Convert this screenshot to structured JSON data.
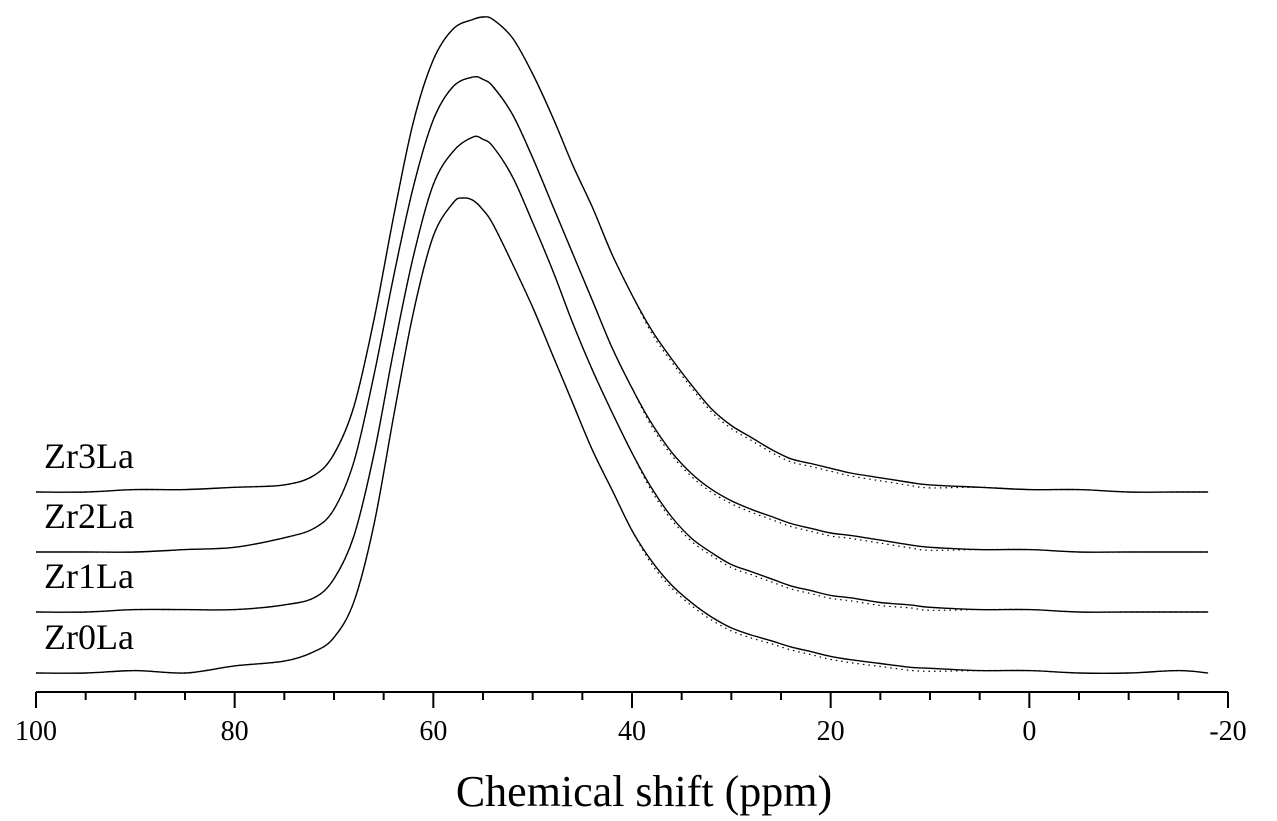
{
  "chart_data": {
    "type": "line",
    "title": "",
    "xlabel": "Chemical shift (ppm)",
    "ylabel": "",
    "xlim": [
      100,
      -20
    ],
    "x_reversed": true,
    "x_ticks": [
      100,
      80,
      60,
      40,
      20,
      0,
      -20
    ],
    "minor_tick_step": 5,
    "y_axis_shown": false,
    "grid": false,
    "legend": "none",
    "curve_styles": {
      "experimental": "solid",
      "fit": "dotted"
    },
    "series": [
      {
        "name": "Zr0La",
        "x": [
          100,
          95,
          90,
          85,
          80,
          75,
          72,
          70,
          68,
          66,
          64,
          62,
          60,
          58,
          57,
          56,
          55,
          54,
          52,
          50,
          48,
          46,
          44,
          42,
          40,
          38,
          36,
          34,
          32,
          30,
          28,
          26,
          24,
          22,
          20,
          18,
          15,
          12,
          10,
          5,
          0,
          -5,
          -10,
          -15,
          -18
        ],
        "y": [
          0.0,
          0.0,
          0.005,
          0.0,
          0.015,
          0.025,
          0.045,
          0.075,
          0.15,
          0.31,
          0.54,
          0.76,
          0.92,
          0.99,
          1.0,
          0.995,
          0.975,
          0.945,
          0.86,
          0.77,
          0.67,
          0.57,
          0.47,
          0.385,
          0.3,
          0.235,
          0.185,
          0.148,
          0.118,
          0.095,
          0.08,
          0.068,
          0.055,
          0.045,
          0.035,
          0.028,
          0.02,
          0.012,
          0.01,
          0.005,
          0.005,
          0.0,
          0.0,
          0.005,
          0.0
        ]
      },
      {
        "name": "Zr1La",
        "x": [
          100,
          95,
          90,
          85,
          80,
          75,
          72,
          70,
          68,
          66,
          64,
          62,
          60,
          58,
          56,
          55,
          54,
          52,
          50,
          48,
          46,
          44,
          42,
          40,
          38,
          36,
          34,
          32,
          30,
          28,
          26,
          24,
          22,
          20,
          18,
          15,
          12,
          10,
          5,
          0,
          -5,
          -10,
          -15,
          -18
        ],
        "y": [
          0.0,
          0.0,
          0.005,
          0.005,
          0.005,
          0.015,
          0.03,
          0.07,
          0.16,
          0.33,
          0.55,
          0.75,
          0.9,
          0.97,
          1.0,
          0.995,
          0.98,
          0.915,
          0.82,
          0.72,
          0.61,
          0.51,
          0.42,
          0.335,
          0.26,
          0.2,
          0.155,
          0.125,
          0.1,
          0.085,
          0.07,
          0.055,
          0.045,
          0.035,
          0.03,
          0.02,
          0.015,
          0.01,
          0.005,
          0.005,
          0.0,
          0.0,
          0.0,
          0.0
        ]
      },
      {
        "name": "Zr2La",
        "x": [
          100,
          95,
          90,
          85,
          80,
          75,
          72,
          70,
          68,
          66,
          64,
          62,
          60,
          58,
          56,
          55,
          54,
          52,
          50,
          48,
          46,
          44,
          42,
          40,
          38,
          36,
          34,
          32,
          30,
          28,
          26,
          24,
          22,
          20,
          18,
          15,
          12,
          10,
          5,
          0,
          -5,
          -10,
          -15,
          -18
        ],
        "y": [
          0.0,
          0.0,
          0.0,
          0.005,
          0.01,
          0.03,
          0.05,
          0.09,
          0.19,
          0.37,
          0.58,
          0.77,
          0.91,
          0.98,
          1.0,
          0.995,
          0.98,
          0.92,
          0.83,
          0.73,
          0.63,
          0.53,
          0.43,
          0.345,
          0.27,
          0.21,
          0.165,
          0.132,
          0.108,
          0.09,
          0.075,
          0.06,
          0.05,
          0.04,
          0.035,
          0.025,
          0.015,
          0.01,
          0.005,
          0.005,
          0.0,
          0.0,
          0.0,
          0.0
        ]
      },
      {
        "name": "Zr3La",
        "x": [
          100,
          95,
          90,
          85,
          80,
          75,
          72,
          70,
          68,
          66,
          64,
          62,
          60,
          58,
          56,
          55,
          54,
          52,
          50,
          48,
          46,
          44,
          42,
          40,
          38,
          36,
          34,
          32,
          30,
          28,
          26,
          24,
          22,
          20,
          18,
          15,
          12,
          10,
          5,
          0,
          -5,
          -10,
          -15,
          -18
        ],
        "y": [
          0.0,
          0.0,
          0.005,
          0.005,
          0.01,
          0.015,
          0.035,
          0.08,
          0.18,
          0.36,
          0.58,
          0.78,
          0.91,
          0.975,
          0.995,
          1.0,
          0.995,
          0.955,
          0.88,
          0.79,
          0.69,
          0.6,
          0.5,
          0.415,
          0.34,
          0.28,
          0.225,
          0.175,
          0.14,
          0.115,
          0.09,
          0.07,
          0.06,
          0.05,
          0.04,
          0.03,
          0.02,
          0.015,
          0.01,
          0.005,
          0.005,
          0.0,
          0.0,
          0.0
        ]
      }
    ]
  }
}
